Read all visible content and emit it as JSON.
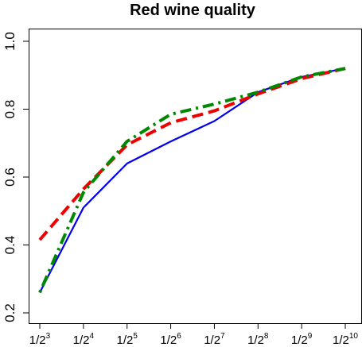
{
  "chart_data": {
    "type": "line",
    "title": "Red wine quality",
    "xlabel": "",
    "ylabel": "",
    "categories": [
      "1/2^3",
      "1/2^4",
      "1/2^5",
      "1/2^6",
      "1/2^7",
      "1/2^8",
      "1/2^9",
      "1/2^10"
    ],
    "x_tick_labels": [
      {
        "base": "1/2",
        "exp": "3"
      },
      {
        "base": "1/2",
        "exp": "4"
      },
      {
        "base": "1/2",
        "exp": "5"
      },
      {
        "base": "1/2",
        "exp": "6"
      },
      {
        "base": "1/2",
        "exp": "7"
      },
      {
        "base": "1/2",
        "exp": "8"
      },
      {
        "base": "1/2",
        "exp": "9"
      },
      {
        "base": "1/2",
        "exp": "10"
      }
    ],
    "y_ticks": [
      "0.2",
      "0.4",
      "0.6",
      "0.8",
      "1.0"
    ],
    "ylim": [
      0.2,
      1.0
    ],
    "grid": false,
    "legend": "none",
    "series": [
      {
        "color": "#0000ee",
        "style": "solid",
        "values": [
          0.26,
          0.51,
          0.64,
          0.705,
          0.765,
          0.85,
          0.895,
          0.92
        ]
      },
      {
        "color": "#ee0000",
        "style": "dashed",
        "values": [
          0.415,
          0.565,
          0.695,
          0.76,
          0.795,
          0.845,
          0.89,
          0.92
        ]
      },
      {
        "color": "#008800",
        "style": "dotdash",
        "values": [
          0.26,
          0.555,
          0.705,
          0.785,
          0.815,
          0.85,
          0.895,
          0.92
        ]
      }
    ]
  }
}
